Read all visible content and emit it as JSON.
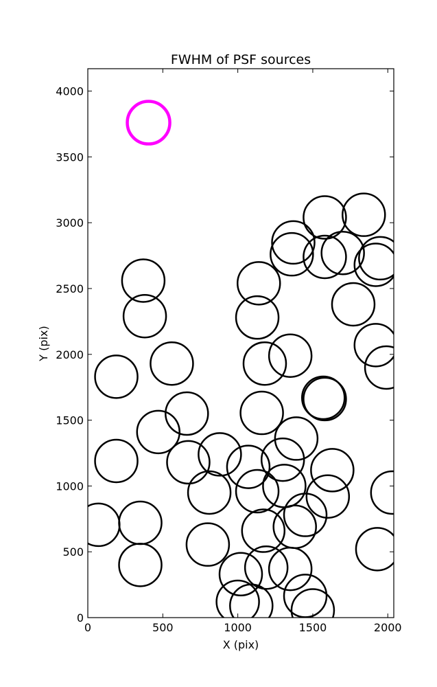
{
  "chart_data": {
    "type": "scatter",
    "title": "FWHM of PSF sources",
    "xlabel": "X (pix)",
    "ylabel": "Y (pix)",
    "xlim": [
      0,
      2040
    ],
    "ylim": [
      0,
      4170
    ],
    "xticks": [
      0,
      500,
      1000,
      1500,
      2000
    ],
    "yticks": [
      0,
      500,
      1000,
      1500,
      2000,
      2500,
      3000,
      3500,
      4000
    ],
    "marker": "open circle, diameter proportional to FWHM",
    "grid": false,
    "series": [
      {
        "color": "#000000",
        "points": [
          {
            "x": 70,
            "y": 705
          },
          {
            "x": 190,
            "y": 1190
          },
          {
            "x": 190,
            "y": 1830
          },
          {
            "x": 350,
            "y": 720
          },
          {
            "x": 350,
            "y": 400
          },
          {
            "x": 370,
            "y": 2560
          },
          {
            "x": 380,
            "y": 2290
          },
          {
            "x": 470,
            "y": 1410
          },
          {
            "x": 560,
            "y": 1930
          },
          {
            "x": 660,
            "y": 1550
          },
          {
            "x": 670,
            "y": 1180
          },
          {
            "x": 810,
            "y": 950
          },
          {
            "x": 800,
            "y": 555
          },
          {
            "x": 880,
            "y": 1240
          },
          {
            "x": 1020,
            "y": 330
          },
          {
            "x": 1000,
            "y": 120
          },
          {
            "x": 1090,
            "y": 90
          },
          {
            "x": 1070,
            "y": 1145
          },
          {
            "x": 1130,
            "y": 960
          },
          {
            "x": 1140,
            "y": 2540
          },
          {
            "x": 1130,
            "y": 2280
          },
          {
            "x": 1180,
            "y": 1930
          },
          {
            "x": 1160,
            "y": 1555
          },
          {
            "x": 1170,
            "y": 660
          },
          {
            "x": 1190,
            "y": 380
          },
          {
            "x": 1300,
            "y": 1200
          },
          {
            "x": 1310,
            "y": 1000
          },
          {
            "x": 1370,
            "y": 2850
          },
          {
            "x": 1360,
            "y": 2760
          },
          {
            "x": 1350,
            "y": 1990
          },
          {
            "x": 1390,
            "y": 1360
          },
          {
            "x": 1380,
            "y": 690
          },
          {
            "x": 1350,
            "y": 370
          },
          {
            "x": 1450,
            "y": 780
          },
          {
            "x": 1450,
            "y": 165
          },
          {
            "x": 1500,
            "y": 55
          },
          {
            "x": 1570,
            "y": 1670
          },
          {
            "x": 1580,
            "y": 1660
          },
          {
            "x": 1580,
            "y": 3040
          },
          {
            "x": 1580,
            "y": 2740
          },
          {
            "x": 1700,
            "y": 2770
          },
          {
            "x": 1600,
            "y": 920
          },
          {
            "x": 1630,
            "y": 1120
          },
          {
            "x": 1770,
            "y": 2380
          },
          {
            "x": 1840,
            "y": 3060
          },
          {
            "x": 1920,
            "y": 2070
          },
          {
            "x": 1950,
            "y": 2730
          },
          {
            "x": 1920,
            "y": 2680
          },
          {
            "x": 1990,
            "y": 1900
          },
          {
            "x": 2030,
            "y": 950
          },
          {
            "x": 1930,
            "y": 520
          }
        ]
      },
      {
        "color": "#ff00ff",
        "points": [
          {
            "x": 405,
            "y": 3760
          }
        ]
      }
    ]
  }
}
